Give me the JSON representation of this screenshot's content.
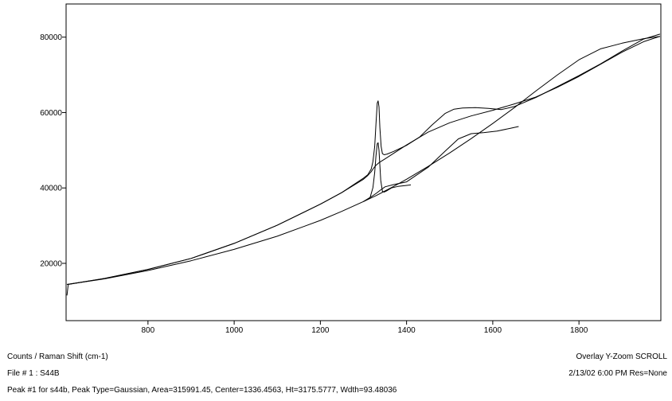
{
  "chart_data": {
    "type": "line",
    "xlim": [
      610,
      1990
    ],
    "ylim": [
      4800,
      88800
    ],
    "x_ticks": [
      800,
      1000,
      1200,
      1400,
      1600,
      1800
    ],
    "y_ticks": [
      20000,
      40000,
      60000,
      80000
    ],
    "y_tick_labels": [
      "20000",
      "40000",
      "60000",
      "80000"
    ],
    "x_tick_labels": [
      "800",
      "1000",
      "1200",
      "1400",
      "1600",
      "1800"
    ],
    "grid": false,
    "line_color": "#000000",
    "series": [
      {
        "x": [
          612,
          615,
          700,
          800,
          900,
          1000,
          1100,
          1200,
          1250,
          1280,
          1300,
          1310,
          1318,
          1322,
          1326,
          1329,
          1332,
          1334,
          1336,
          1338,
          1341,
          1344,
          1348,
          1355,
          1370,
          1400,
          1430,
          1460,
          1490,
          1510,
          1530,
          1560,
          1590,
          1620,
          1650,
          1700,
          1750,
          1800,
          1850,
          1900,
          1950,
          1988
        ],
        "y": [
          11500,
          14400,
          16000,
          18400,
          21300,
          25300,
          30100,
          35700,
          38800,
          41100,
          42600,
          43500,
          45000,
          47000,
          51000,
          57000,
          62500,
          63100,
          61500,
          56000,
          51000,
          49100,
          48800,
          49000,
          49700,
          51300,
          53500,
          56800,
          59800,
          60900,
          61200,
          61300,
          61100,
          60800,
          61600,
          64000,
          66900,
          69800,
          72900,
          76300,
          79500,
          80800
        ]
      },
      {
        "x": [
          612,
          700,
          800,
          900,
          1000,
          1100,
          1200,
          1250,
          1300,
          1310,
          1318,
          1322,
          1326,
          1329,
          1332,
          1336,
          1340,
          1350,
          1400,
          1450,
          1500,
          1550,
          1600,
          1650,
          1700,
          1750,
          1800,
          1850,
          1900,
          1950,
          1988
        ],
        "y": [
          14400,
          16000,
          18400,
          21300,
          25300,
          30100,
          35700,
          38800,
          42300,
          43300,
          44300,
          45000,
          45600,
          46000,
          46300,
          46700,
          47000,
          47700,
          51400,
          54800,
          57300,
          59100,
          60600,
          62300,
          64100,
          66700,
          69600,
          72800,
          76000,
          78800,
          80200
        ]
      },
      {
        "x": [
          612,
          700,
          800,
          900,
          1000,
          1100,
          1200,
          1250,
          1300,
          1330,
          1350,
          1370,
          1400,
          1450,
          1500,
          1550,
          1600,
          1650,
          1700,
          1750,
          1800,
          1850,
          1900,
          1950,
          1988
        ],
        "y": [
          14400,
          15900,
          18100,
          20700,
          23700,
          27200,
          31400,
          33800,
          36400,
          38000,
          39200,
          40400,
          42300,
          45700,
          49300,
          53100,
          57100,
          61300,
          65700,
          70000,
          74000,
          76900,
          78400,
          79600,
          80200
        ]
      },
      {
        "x": [
          1300,
          1320,
          1330,
          1340,
          1350,
          1370,
          1400,
          1450,
          1490,
          1520,
          1550,
          1580,
          1610,
          1640,
          1660
        ],
        "y": [
          36400,
          37800,
          38600,
          39500,
          40300,
          40900,
          41600,
          45500,
          49800,
          53000,
          54400,
          54700,
          55100,
          55800,
          56300
        ]
      },
      {
        "x": [
          1300,
          1315,
          1322,
          1326,
          1329,
          1332,
          1334,
          1336,
          1338,
          1340,
          1344,
          1348,
          1355,
          1365,
          1380,
          1395,
          1410
        ],
        "y": [
          36400,
          37300,
          40100,
          44100,
          48500,
          51700,
          52000,
          50000,
          46000,
          42000,
          39100,
          38900,
          39300,
          40000,
          40400,
          40600,
          40800
        ]
      }
    ]
  },
  "status": {
    "left_line1": "Counts / Raman Shift (cm-1)",
    "left_line2": "File # 1 : S44B",
    "left_line3": "Peak #1 for s44b, Peak Type=Gaussian, Area=315991.45, Center=1336.4563, Ht=3175.5777, Wdth=93.48036",
    "right_line1": "Overlay Y-Zoom SCROLL",
    "right_line2": "2/13/02  6:00 PM  Res=None"
  }
}
